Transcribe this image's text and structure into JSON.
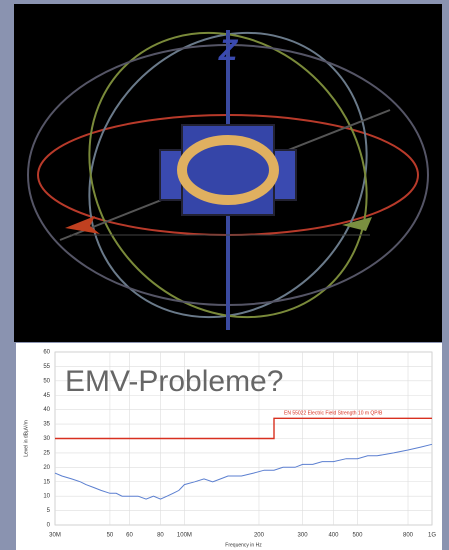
{
  "chart_data": {
    "type": "line",
    "title": "EMV-Probleme?",
    "x_label": "Frequency in Hz",
    "y_label": "Level in dBµV/m",
    "xlog": true,
    "xlim": [
      30,
      1000
    ],
    "xticks": [
      {
        "value": 30,
        "label": "30M"
      },
      50,
      60,
      80,
      {
        "value": 100,
        "label": "100M"
      },
      200,
      300,
      400,
      500,
      800,
      {
        "value": 1000,
        "label": "1G"
      }
    ],
    "ylim": [
      0,
      60
    ],
    "yticks": [
      0,
      5,
      10,
      15,
      20,
      25,
      30,
      35,
      40,
      45,
      50,
      55,
      60
    ],
    "grid": true,
    "series": [
      {
        "name": "EN 55022 Electric Field Strength 10 m QP/B",
        "color": "#d83020",
        "x": [
          30,
          230,
          230,
          1000
        ],
        "values": [
          30,
          30,
          37,
          37
        ]
      },
      {
        "color": "#5b7fd0",
        "x": [
          30,
          32,
          35,
          38,
          40,
          43,
          46,
          50,
          53,
          56,
          60,
          65,
          70,
          75,
          80,
          85,
          90,
          95,
          100,
          110,
          120,
          130,
          140,
          150,
          170,
          190,
          210,
          230,
          250,
          280,
          300,
          330,
          360,
          400,
          450,
          500,
          550,
          600,
          700,
          800,
          900,
          1000
        ],
        "values": [
          18,
          17,
          16,
          15,
          14,
          13,
          12,
          11,
          11,
          10,
          10,
          10,
          9,
          10,
          9,
          10,
          11,
          12,
          14,
          15,
          16,
          15,
          16,
          17,
          17,
          18,
          19,
          19,
          20,
          20,
          21,
          21,
          22,
          22,
          23,
          23,
          24,
          24,
          25,
          26,
          27,
          28
        ]
      }
    ]
  }
}
